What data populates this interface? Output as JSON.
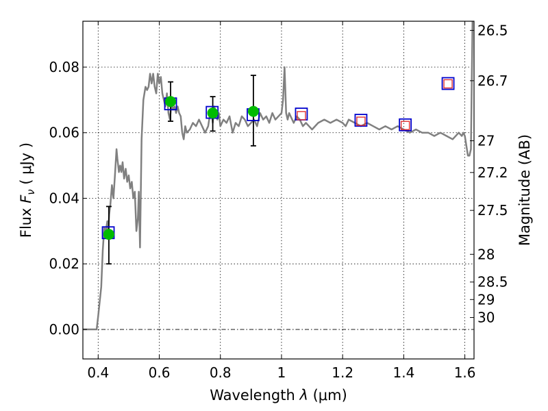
{
  "chart_data": {
    "type": "scatter",
    "xlabel": {
      "prefix": "Wavelength  ",
      "symbol": "λ",
      "unit": " (μm)"
    },
    "ylabel": {
      "prefix": "Flux  ",
      "symbol": "F",
      "subscript": "ν",
      "unit": "  ( μJy )"
    },
    "y2label": "Magnitude (AB)",
    "xlim": [
      0.35,
      1.63
    ],
    "ylim": [
      -0.009,
      0.094
    ],
    "grid": true,
    "x_ticks": [
      {
        "v": 0.4,
        "label": "0.4"
      },
      {
        "v": 0.6,
        "label": "0.6"
      },
      {
        "v": 0.8,
        "label": "0.8"
      },
      {
        "v": 1.0,
        "label": "1"
      },
      {
        "v": 1.2,
        "label": "1.2"
      },
      {
        "v": 1.4,
        "label": "1.4"
      },
      {
        "v": 1.6,
        "label": "1.6"
      }
    ],
    "y_ticks": [
      {
        "v": 0.0,
        "label": "0.00"
      },
      {
        "v": 0.02,
        "label": "0.02"
      },
      {
        "v": 0.04,
        "label": "0.04"
      },
      {
        "v": 0.06,
        "label": "0.06"
      },
      {
        "v": 0.08,
        "label": "0.08"
      }
    ],
    "mag_ticks": [
      {
        "v": 26.5,
        "label": "26.5"
      },
      {
        "v": 26.7,
        "label": "26.7"
      },
      {
        "v": 27,
        "label": "27"
      },
      {
        "v": 27.2,
        "label": "27.2"
      },
      {
        "v": 27.5,
        "label": "27.5"
      },
      {
        "v": 28,
        "label": "28"
      },
      {
        "v": 28.5,
        "label": "28.5"
      },
      {
        "v": 29,
        "label": "29"
      },
      {
        "v": 30,
        "label": "30"
      }
    ],
    "zero_line": 0.0,
    "series": [
      {
        "kind": "line",
        "color": "#808080",
        "x": [
          0.35,
          0.395,
          0.4,
          0.41,
          0.415,
          0.42,
          0.425,
          0.43,
          0.433,
          0.436,
          0.44,
          0.445,
          0.45,
          0.455,
          0.46,
          0.463,
          0.468,
          0.472,
          0.476,
          0.48,
          0.485,
          0.49,
          0.495,
          0.5,
          0.505,
          0.51,
          0.515,
          0.52,
          0.525,
          0.53,
          0.533,
          0.537,
          0.542,
          0.548,
          0.555,
          0.56,
          0.565,
          0.57,
          0.575,
          0.58,
          0.585,
          0.59,
          0.595,
          0.6,
          0.605,
          0.61,
          0.615,
          0.62,
          0.625,
          0.63,
          0.635,
          0.64,
          0.645,
          0.65,
          0.655,
          0.66,
          0.665,
          0.67,
          0.675,
          0.68,
          0.685,
          0.69,
          0.7,
          0.71,
          0.72,
          0.73,
          0.74,
          0.75,
          0.76,
          0.765,
          0.77,
          0.775,
          0.78,
          0.785,
          0.79,
          0.795,
          0.8,
          0.81,
          0.82,
          0.83,
          0.84,
          0.85,
          0.86,
          0.87,
          0.88,
          0.89,
          0.9,
          0.91,
          0.92,
          0.93,
          0.94,
          0.95,
          0.96,
          0.97,
          0.98,
          0.99,
          1.0,
          1.005,
          1.01,
          1.015,
          1.02,
          1.025,
          1.03,
          1.04,
          1.05,
          1.06,
          1.07,
          1.08,
          1.09,
          1.1,
          1.12,
          1.14,
          1.16,
          1.18,
          1.2,
          1.21,
          1.22,
          1.24,
          1.26,
          1.28,
          1.3,
          1.32,
          1.34,
          1.36,
          1.38,
          1.4,
          1.42,
          1.44,
          1.46,
          1.48,
          1.5,
          1.52,
          1.54,
          1.56,
          1.58,
          1.59,
          1.595,
          1.6,
          1.61,
          1.615,
          1.62,
          1.625
        ],
        "y": [
          0.0,
          0.0,
          0.004,
          0.013,
          0.024,
          0.031,
          0.03,
          0.033,
          0.03,
          0.035,
          0.038,
          0.044,
          0.04,
          0.047,
          0.055,
          0.052,
          0.048,
          0.05,
          0.048,
          0.051,
          0.046,
          0.049,
          0.045,
          0.047,
          0.043,
          0.045,
          0.04,
          0.042,
          0.03,
          0.034,
          0.042,
          0.025,
          0.058,
          0.07,
          0.074,
          0.073,
          0.074,
          0.078,
          0.075,
          0.078,
          0.074,
          0.072,
          0.078,
          0.075,
          0.077,
          0.072,
          0.07,
          0.068,
          0.072,
          0.066,
          0.064,
          0.069,
          0.067,
          0.068,
          0.066,
          0.068,
          0.066,
          0.065,
          0.06,
          0.058,
          0.062,
          0.06,
          0.061,
          0.063,
          0.062,
          0.064,
          0.062,
          0.06,
          0.062,
          0.065,
          0.067,
          0.063,
          0.068,
          0.066,
          0.064,
          0.066,
          0.062,
          0.064,
          0.063,
          0.065,
          0.06,
          0.063,
          0.062,
          0.065,
          0.064,
          0.062,
          0.063,
          0.064,
          0.062,
          0.066,
          0.064,
          0.065,
          0.063,
          0.066,
          0.064,
          0.065,
          0.066,
          0.07,
          0.08,
          0.066,
          0.064,
          0.066,
          0.065,
          0.063,
          0.065,
          0.064,
          0.062,
          0.063,
          0.062,
          0.061,
          0.063,
          0.064,
          0.063,
          0.064,
          0.063,
          0.062,
          0.064,
          0.063,
          0.062,
          0.063,
          0.062,
          0.061,
          0.062,
          0.061,
          0.062,
          0.061,
          0.06,
          0.061,
          0.06,
          0.06,
          0.059,
          0.06,
          0.059,
          0.058,
          0.06,
          0.059,
          0.06,
          0.059,
          0.053,
          0.053,
          0.055,
          0.094
        ]
      },
      {
        "kind": "points-with-errorbars",
        "color": "#00bb00",
        "errorbar_color": "#000000",
        "x": [
          0.435,
          0.637,
          0.775,
          0.908
        ],
        "y": [
          0.029,
          0.0695,
          0.066,
          0.0665
        ],
        "yerr_low": [
          0.009,
          0.006,
          0.0055,
          0.0105
        ],
        "yerr_high": [
          0.0085,
          0.006,
          0.005,
          0.011
        ]
      },
      {
        "kind": "open-squares",
        "color": "#0000cc",
        "x": [
          0.433,
          0.637,
          0.773,
          0.907,
          1.065,
          1.26,
          1.405,
          1.545
        ],
        "y": [
          0.0295,
          0.0688,
          0.0662,
          0.0655,
          0.0657,
          0.0638,
          0.0624,
          0.075
        ]
      },
      {
        "kind": "open-squares-small",
        "color": "#e03030",
        "x": [
          1.065,
          1.26,
          1.405,
          1.545
        ],
        "y": [
          0.0652,
          0.0635,
          0.0622,
          0.0749
        ]
      }
    ]
  }
}
